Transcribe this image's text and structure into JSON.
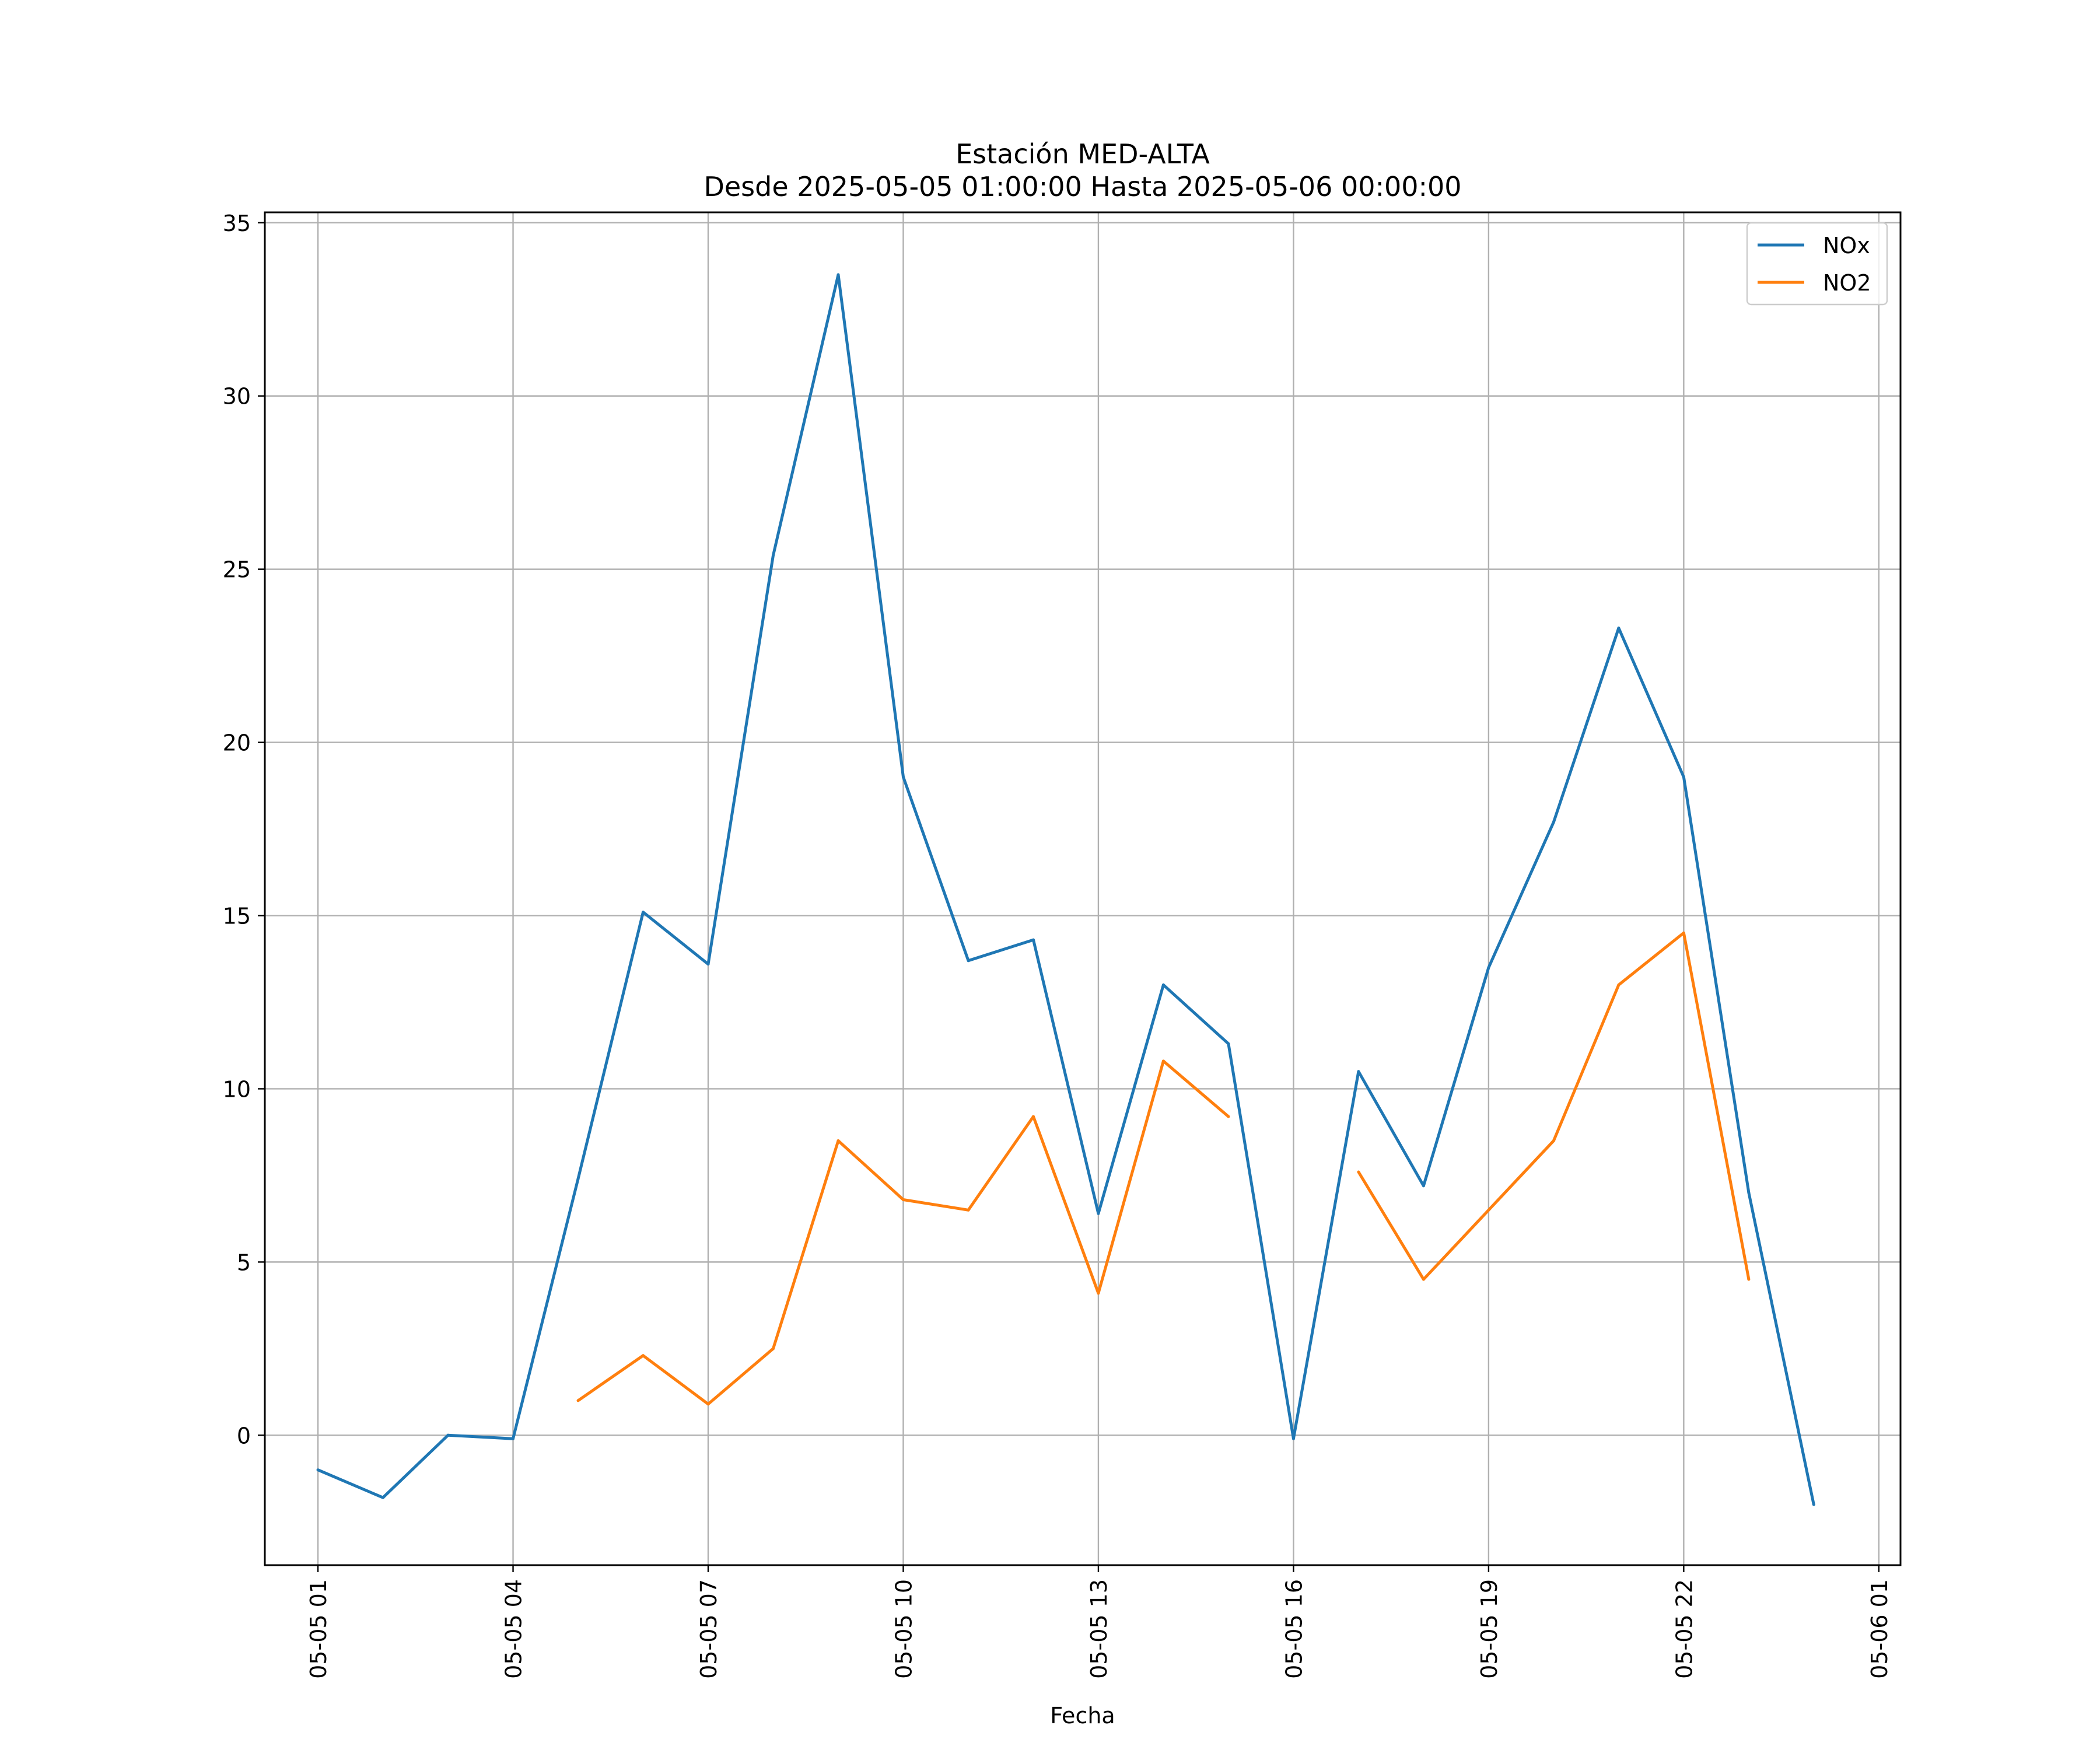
{
  "chart_data": {
    "type": "line",
    "title": "Estación MED-ALTA",
    "subtitle": "Desde 2025-05-05 01:00:00 Hasta 2025-05-06 00:00:00",
    "xlabel": "Fecha",
    "ylabel": "",
    "x": [
      "2025-05-05 01:00",
      "2025-05-05 02:00",
      "2025-05-05 03:00",
      "2025-05-05 04:00",
      "2025-05-05 05:00",
      "2025-05-05 06:00",
      "2025-05-05 07:00",
      "2025-05-05 08:00",
      "2025-05-05 09:00",
      "2025-05-05 10:00",
      "2025-05-05 11:00",
      "2025-05-05 12:00",
      "2025-05-05 13:00",
      "2025-05-05 14:00",
      "2025-05-05 15:00",
      "2025-05-05 16:00",
      "2025-05-05 17:00",
      "2025-05-05 18:00",
      "2025-05-05 19:00",
      "2025-05-05 20:00",
      "2025-05-05 21:00",
      "2025-05-05 22:00",
      "2025-05-05 23:00",
      "2025-05-06 00:00"
    ],
    "series": [
      {
        "name": "NOx",
        "color": "#1f77b4",
        "values": [
          -1.0,
          -1.8,
          0.0,
          -0.1,
          7.4,
          15.1,
          13.6,
          25.4,
          33.5,
          19.0,
          13.7,
          14.3,
          6.4,
          13.0,
          11.3,
          -0.1,
          10.5,
          7.2,
          13.5,
          17.7,
          23.3,
          19.0,
          7.0,
          -2.0
        ]
      },
      {
        "name": "NO2",
        "color": "#ff7f0e",
        "values": [
          null,
          null,
          null,
          null,
          1.0,
          2.3,
          0.9,
          2.5,
          8.5,
          6.8,
          6.5,
          9.2,
          4.1,
          10.8,
          9.2,
          null,
          7.6,
          4.5,
          6.5,
          8.5,
          13.0,
          14.5,
          4.5,
          null
        ]
      }
    ],
    "xlim": [
      "2025-05-05 00:11",
      "2025-05-06 01:20"
    ],
    "ylim": [
      -3.75,
      35.3
    ],
    "y_ticks": [
      0,
      5,
      10,
      15,
      20,
      25,
      30,
      35
    ],
    "x_ticks": [
      {
        "at": "2025-05-05 01:00",
        "label": "05-05 01"
      },
      {
        "at": "2025-05-05 04:00",
        "label": "05-05 04"
      },
      {
        "at": "2025-05-05 07:00",
        "label": "05-05 07"
      },
      {
        "at": "2025-05-05 10:00",
        "label": "05-05 10"
      },
      {
        "at": "2025-05-05 13:00",
        "label": "05-05 13"
      },
      {
        "at": "2025-05-05 16:00",
        "label": "05-05 16"
      },
      {
        "at": "2025-05-05 19:00",
        "label": "05-05 19"
      },
      {
        "at": "2025-05-05 22:00",
        "label": "05-05 22"
      },
      {
        "at": "2025-05-06 01:00",
        "label": "05-06 01"
      }
    ],
    "grid": true,
    "legend": "top-right"
  }
}
